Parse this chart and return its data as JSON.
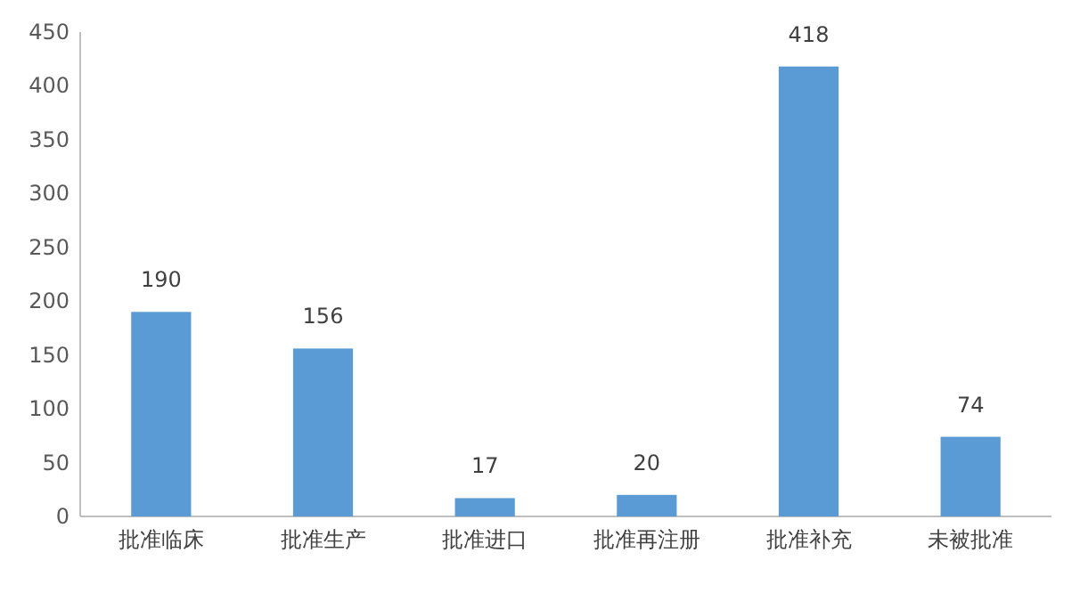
{
  "chart_data": {
    "type": "bar",
    "categories": [
      "批准临床",
      "批准生产",
      "批准进口",
      "批准再注册",
      "批准补充",
      "未被批准"
    ],
    "values": [
      190,
      156,
      17,
      20,
      418,
      74
    ],
    "color": "#5b9bd5",
    "ylim": [
      0,
      450
    ],
    "yticks": [
      0,
      50,
      100,
      150,
      200,
      250,
      300,
      350,
      400,
      450
    ],
    "grid": false,
    "data_labels": true
  }
}
